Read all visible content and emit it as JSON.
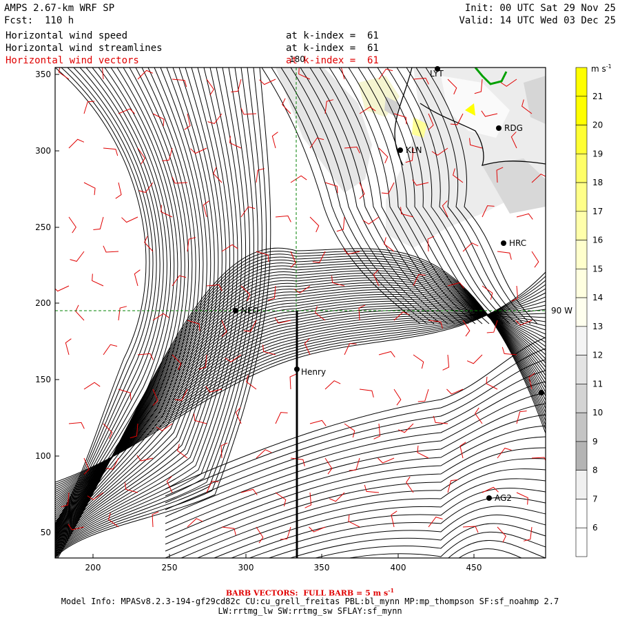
{
  "header": {
    "model_line": "AMPS 2.67-km WRF SP",
    "fcst_line": "Fcst:  110 h",
    "init_line": "Init: 00 UTC Sat 29 Nov 25",
    "valid_line": "Valid: 14 UTC Wed 03 Dec 25",
    "fields": [
      {
        "name": "Horizontal wind speed",
        "level": "at k-index =  61"
      },
      {
        "name": "Horizontal wind streamlines",
        "level": "at k-index =  61"
      },
      {
        "name": "Horizontal wind vectors",
        "level": "at k-index =  61"
      }
    ]
  },
  "map": {
    "x_ticks": [
      "200",
      "250",
      "300",
      "350",
      "400",
      "450"
    ],
    "y_ticks": [
      "350",
      "300",
      "250",
      "200",
      "150",
      "100",
      "50"
    ],
    "meridian_label": "180",
    "parallel_label": "90 W",
    "stations": [
      "LYT",
      "RDG",
      "KLN",
      "HRC",
      "NEO",
      "Henry",
      "AG2"
    ]
  },
  "colorbar": {
    "unit": "m s",
    "unit_exp": "-1",
    "levels": [
      "21",
      "20",
      "19",
      "18",
      "17",
      "16",
      "15",
      "14",
      "13",
      "12",
      "11",
      "10",
      "9",
      "8",
      "7",
      "6"
    ],
    "colors": [
      "#ffff00",
      "#ffff00",
      "#ffff33",
      "#ffff66",
      "#ffff88",
      "#ffffaa",
      "#ffffcc",
      "#ffffe0",
      "#ffffee",
      "#f4f4f4",
      "#e4e4e4",
      "#d4d4d4",
      "#c4c4c4",
      "#b4b4b4",
      "#f0f0f0",
      "#ffffff"
    ]
  },
  "footer": {
    "barb_text": "BARB VECTORS:  FULL BARB = 5 m s",
    "barb_exp": "-1",
    "model_info_1": "Model Info: MPASv8.2.3-194-gf29cd82c CU:cu_grell_freitas PBL:bl_mynn MP:mp_thompson SF:sf_noahmp 2.7",
    "model_info_2": "LW:rrtmg_lw SW:rrtmg_sw SFLAY:sf_mynn"
  }
}
